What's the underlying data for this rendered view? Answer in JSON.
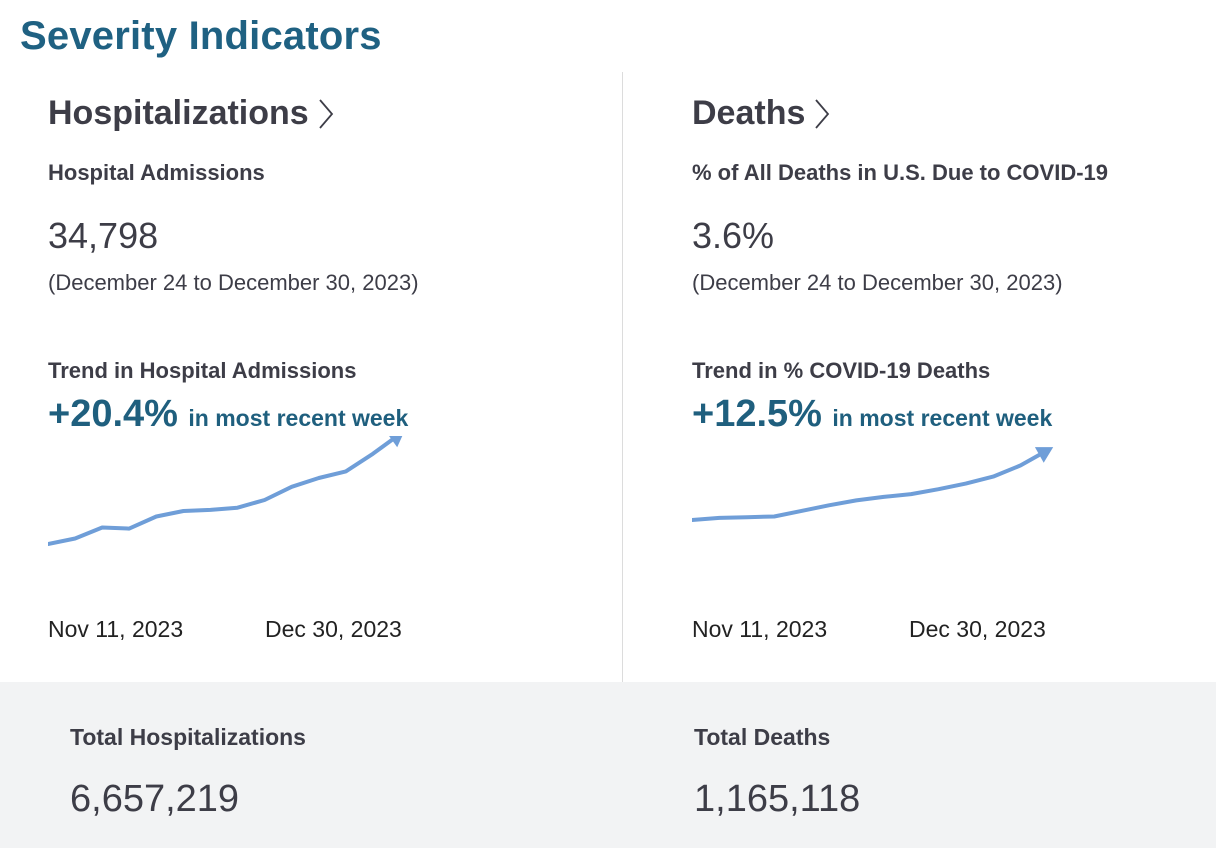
{
  "page_title": "Severity Indicators",
  "hospitalizations": {
    "title": "Hospitalizations",
    "metric_label": "Hospital Admissions",
    "metric_value": "34,798",
    "date_range": "(December 24 to December 30, 2023)",
    "trend_label": "Trend in Hospital Admissions",
    "trend_pct": "+20.4%",
    "trend_suffix": "in most recent week",
    "date_start": "Nov 11, 2023",
    "date_end": "Dec 30, 2023",
    "total_label": "Total Hospitalizations",
    "total_value": "6,657,219"
  },
  "deaths": {
    "title": "Deaths",
    "metric_label": "% of All Deaths in U.S. Due to COVID-19",
    "metric_value": "3.6%",
    "date_range": "(December 24 to December 30, 2023)",
    "trend_label": "Trend in % COVID-19 Deaths",
    "trend_pct": "+12.5%",
    "trend_suffix": "in most recent week",
    "date_start": "Nov 11, 2023",
    "date_end": "Dec 30, 2023",
    "total_label": "Total Deaths",
    "total_value": "1,165,118"
  },
  "colors": {
    "title_blue": "#1f6182",
    "trend_blue": "#1f5f7e",
    "sparkline": "#6f9ed8",
    "footer_bg": "#f2f3f4"
  },
  "chart_data": [
    {
      "type": "line",
      "name": "hospital-admissions-trend",
      "x_start": "Nov 11, 2023",
      "x_end": "Dec 30, 2023",
      "values": [
        0.0,
        0.05,
        0.15,
        0.14,
        0.25,
        0.3,
        0.31,
        0.33,
        0.4,
        0.52,
        0.6,
        0.66,
        0.82,
        1.0
      ],
      "arrow_end": true
    },
    {
      "type": "line",
      "name": "covid-deaths-pct-trend",
      "x_start": "Nov 11, 2023",
      "x_end": "Dec 30, 2023",
      "values": [
        0.0,
        0.03,
        0.04,
        0.05,
        0.13,
        0.21,
        0.28,
        0.33,
        0.37,
        0.44,
        0.52,
        0.62,
        0.78,
        1.0
      ],
      "arrow_end": true
    }
  ]
}
